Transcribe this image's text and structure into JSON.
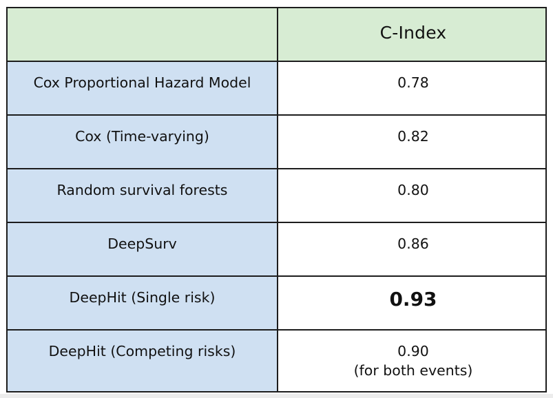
{
  "chart_data": {
    "type": "table",
    "columns": [
      "",
      "C-Index"
    ],
    "rows": [
      {
        "method": "Cox Proportional Hazard Model",
        "c_index": "0.78",
        "note": "",
        "best": false
      },
      {
        "method": "Cox (Time-varying)",
        "c_index": "0.82",
        "note": "",
        "best": false
      },
      {
        "method": "Random survival forests",
        "c_index": "0.80",
        "note": "",
        "best": false
      },
      {
        "method": "DeepSurv",
        "c_index": "0.86",
        "note": "",
        "best": false
      },
      {
        "method": "DeepHit (Single risk)",
        "c_index": "0.93",
        "note": "",
        "best": true
      },
      {
        "method": "DeepHit (Competing risks)",
        "c_index": "0.90",
        "note": "(for both events)",
        "best": false
      }
    ],
    "colors": {
      "header_background": "#d7ecd3",
      "method_background": "#cfe0f2",
      "value_background": "#ffffff",
      "border": "#1c1c1c"
    }
  }
}
